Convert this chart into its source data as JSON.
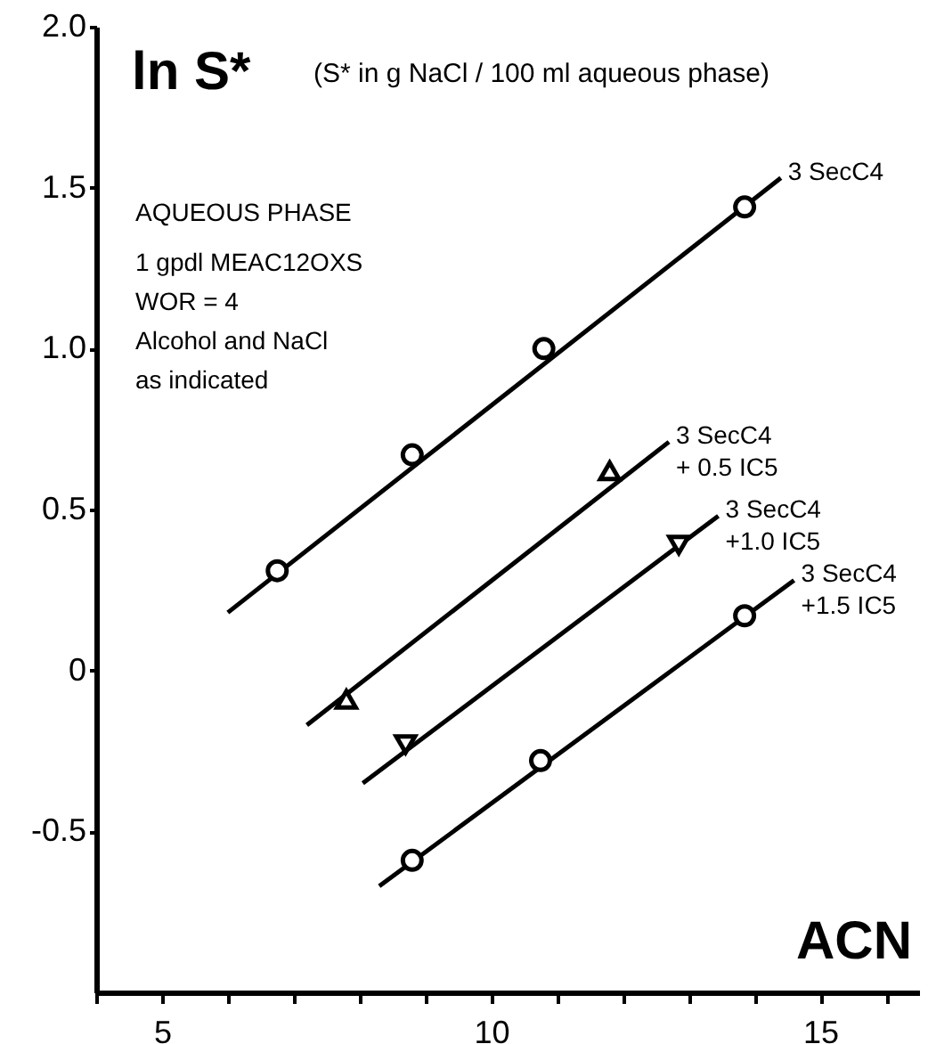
{
  "chart_data": {
    "type": "scatter",
    "title": "ln S*",
    "subtitle": "(S*  in g NaCl / 100 ml aqueous phase)",
    "xlabel": "ACN",
    "annotations": [
      "AQUEOUS PHASE",
      "1 gpdl MEAC12OXS",
      "WOR = 4",
      "Alcohol and NaCl",
      "as indicated"
    ],
    "xlim": [
      4,
      16.5
    ],
    "ylim": [
      -1,
      2
    ],
    "xticks": [
      {
        "value": 4,
        "label": null
      },
      5,
      {
        "value": 6,
        "label": null
      },
      {
        "value": 7,
        "label": null
      },
      {
        "value": 8,
        "label": null
      },
      {
        "value": 9,
        "label": null
      },
      10,
      {
        "value": 11,
        "label": null
      },
      {
        "value": 12,
        "label": null
      },
      {
        "value": 13,
        "label": null
      },
      {
        "value": 14,
        "label": null
      },
      15,
      {
        "value": 16,
        "label": null
      }
    ],
    "yticks": [
      {
        "value": -0.5,
        "label": "-0.5"
      },
      {
        "value": 0,
        "label": "0"
      },
      {
        "value": 0.5,
        "label": "0.5"
      },
      {
        "value": 1,
        "label": "1.0"
      },
      {
        "value": 1.5,
        "label": "1.5"
      },
      {
        "value": 2,
        "label": "2.0"
      }
    ],
    "grid": false,
    "series": [
      {
        "type": "line",
        "name": "3 SecC4",
        "color": "#000000",
        "x": [
          6.0,
          14.4
        ],
        "values": [
          0.18,
          1.53
        ]
      },
      {
        "type": "line",
        "name": "3 SecC4\n+ 0.5 IC5",
        "color": "#000000",
        "x": [
          7.2,
          12.7
        ],
        "values": [
          -0.17,
          0.71
        ]
      },
      {
        "type": "line",
        "name": "3 SecC4\n+1.0 IC5",
        "color": "#000000",
        "x": [
          8.05,
          13.45
        ],
        "values": [
          -0.35,
          0.48
        ]
      },
      {
        "type": "line",
        "name": "3 SecC4\n+1.5 IC5",
        "color": "#000000",
        "x": [
          8.3,
          14.6
        ],
        "values": [
          -0.67,
          0.28
        ]
      },
      {
        "marker": "circle",
        "color": "#000000",
        "x": [
          6.75,
          8.8,
          10.8,
          13.85
        ],
        "values": [
          0.31,
          0.67,
          1.0,
          1.44
        ]
      },
      {
        "marker": "triangle",
        "color": "#000000",
        "x": [
          7.8,
          11.8
        ],
        "values": [
          -0.09,
          0.62
        ]
      },
      {
        "marker": "triangle-down",
        "color": "#000000",
        "x": [
          8.7,
          12.85
        ],
        "values": [
          -0.23,
          0.39
        ]
      },
      {
        "marker": "circle",
        "color": "#000000",
        "x": [
          8.8,
          10.75,
          13.85
        ],
        "values": [
          -0.59,
          -0.28,
          0.17
        ]
      }
    ]
  }
}
